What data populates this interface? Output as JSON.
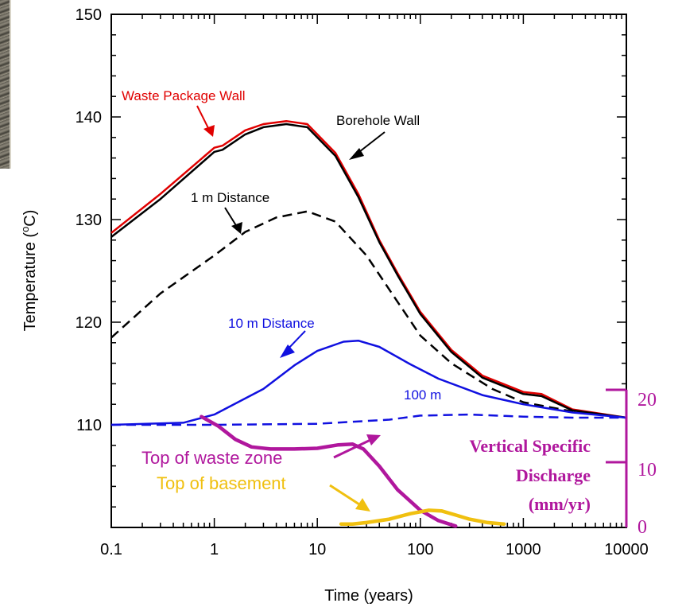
{
  "chart_data": {
    "type": "line",
    "x_scale": "log",
    "xlim": [
      0.1,
      10000
    ],
    "ylim": [
      100,
      150
    ],
    "xlabel": "Time (years)",
    "ylabel": "Temperature (",
    "ylabel_sup": "o",
    "ylabel_unit": "C)",
    "x_ticks": [
      "0.1",
      "1",
      "10",
      "100",
      "1000",
      "10000"
    ],
    "y_ticks": [
      "110",
      "120",
      "130",
      "140",
      "150"
    ],
    "series": [
      {
        "name": "Waste Package Wall",
        "color": "#e00000",
        "style": "solid",
        "x": [
          0.1,
          0.3,
          1,
          1.2,
          2,
          3,
          5,
          8,
          15,
          25,
          40,
          60,
          100,
          200,
          400,
          1000,
          1500,
          3000,
          10000
        ],
        "y": [
          128.7,
          132.5,
          137.0,
          137.2,
          138.7,
          139.3,
          139.6,
          139.3,
          136.5,
          132.5,
          128.0,
          124.8,
          121.0,
          117.3,
          114.8,
          113.2,
          113.0,
          111.5,
          110.7
        ]
      },
      {
        "name": "Borehole Wall",
        "color": "#000000",
        "style": "solid",
        "x": [
          0.1,
          0.3,
          1,
          1.2,
          2,
          3,
          5,
          8,
          15,
          25,
          40,
          60,
          100,
          200,
          400,
          1000,
          1500,
          3000,
          10000
        ],
        "y": [
          128.3,
          132.0,
          136.6,
          136.8,
          138.3,
          139.0,
          139.3,
          139.0,
          136.2,
          132.2,
          127.8,
          124.6,
          120.8,
          117.1,
          114.6,
          113.0,
          112.8,
          111.4,
          110.7
        ]
      },
      {
        "name": "1 m Distance",
        "color": "#000000",
        "style": "dashed",
        "x": [
          0.1,
          0.3,
          1,
          2,
          4,
          8,
          15,
          30,
          60,
          100,
          200,
          500,
          1000,
          3000,
          10000
        ],
        "y": [
          118.5,
          122.8,
          126.5,
          128.8,
          130.2,
          130.8,
          129.8,
          126.5,
          122.0,
          118.7,
          116.0,
          113.5,
          112.2,
          111.3,
          110.7
        ]
      },
      {
        "name": "10 m Distance",
        "color": "#1010e0",
        "style": "solid",
        "x": [
          0.1,
          0.5,
          1,
          3,
          6,
          10,
          18,
          25,
          40,
          80,
          150,
          400,
          1000,
          3000,
          10000
        ],
        "y": [
          110.0,
          110.2,
          111.0,
          113.5,
          115.8,
          117.2,
          118.1,
          118.2,
          117.6,
          115.9,
          114.5,
          112.9,
          112.0,
          111.2,
          110.7
        ]
      },
      {
        "name": "100 m",
        "color": "#1010e0",
        "style": "dashed",
        "x": [
          0.1,
          1,
          10,
          50,
          100,
          300,
          1000,
          3000,
          10000
        ],
        "y": [
          110.0,
          110.0,
          110.1,
          110.5,
          110.9,
          111.0,
          110.8,
          110.7,
          110.7
        ]
      }
    ],
    "secondary_axis": {
      "label": [
        "Vertical Specific",
        "Discharge",
        "(mm/yr)"
      ],
      "ticks": [
        "0",
        "10",
        "20"
      ],
      "ylim": [
        0,
        20
      ],
      "color": "#b0179d"
    },
    "discharge_series": [
      {
        "name": "Top of waste zone",
        "color": "#b0179d",
        "x": [
          0.75,
          1.1,
          1.6,
          2.3,
          3.5,
          6,
          10,
          16,
          22,
          28,
          40,
          60,
          100,
          150,
          220
        ],
        "y": [
          16.1,
          14.7,
          12.8,
          11.7,
          11.4,
          11.4,
          11.5,
          12.0,
          12.1,
          11.4,
          8.9,
          5.5,
          2.5,
          1.0,
          0.2
        ]
      },
      {
        "name": "Top of basement",
        "color": "#f0c010",
        "x": [
          17,
          22,
          30,
          50,
          80,
          120,
          160,
          220,
          300,
          450,
          650
        ],
        "y": [
          0.5,
          0.5,
          0.7,
          1.2,
          2.0,
          2.5,
          2.4,
          1.8,
          1.2,
          0.7,
          0.5
        ]
      }
    ],
    "grid": false,
    "legend": "none"
  },
  "annotations": {
    "waste_package_wall": "Waste Package Wall",
    "borehole_wall": "Borehole Wall",
    "one_m": "1 m Distance",
    "ten_m": "10 m Distance",
    "hundred_m": "100 m",
    "top_waste_zone": "Top of waste zone",
    "top_basement": "Top of basement"
  },
  "colors": {
    "red": "#e00000",
    "blue": "#1010e0",
    "magenta": "#b0179d",
    "gold": "#f0c010",
    "black": "#000000"
  }
}
